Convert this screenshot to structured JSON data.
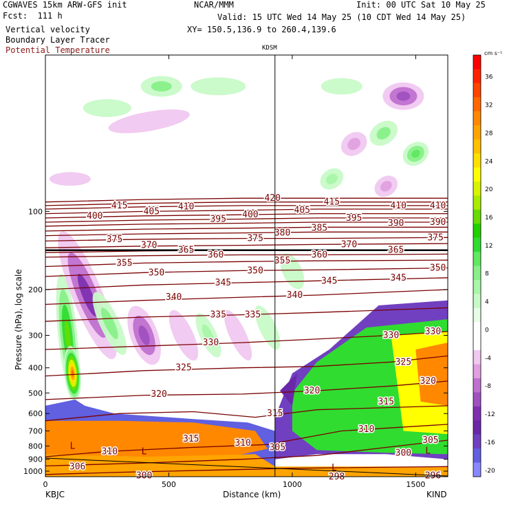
{
  "header": {
    "model": "CGWAVES 15km ARW-GFS init",
    "forecast": "Fcst:  111 h",
    "org": "NCAR/MMM",
    "init": "Init: 00 UTC Sat 10 May 25",
    "valid": "Valid: 15 UTC Wed 14 May 25 (10 CDT Wed 14 May 25)",
    "xy": "XY= 150.5,136.9 to 260.4,139.6",
    "fields": [
      "Vertical velocity",
      "Boundary Layer Tracer",
      "Potential Temperature"
    ]
  },
  "colors": {
    "theta": "#7a0000",
    "sounding": "#000000"
  },
  "chart_data": {
    "type": "heatmap",
    "ylabel": "Pressure (hPa), log scale",
    "xlabel": "Distance (km)",
    "xlim": [
      0,
      1630
    ],
    "ylim": [
      1050,
      25
    ],
    "yscale": "log",
    "x_ticks": [
      0,
      500,
      1000,
      1500
    ],
    "y_ticks": [
      100,
      200,
      300,
      400,
      500,
      600,
      700,
      800,
      900,
      1000
    ],
    "left_station": "KBJC",
    "right_station": "KIND",
    "vertical_marker": {
      "label": "KDSM",
      "x": 930
    },
    "colorbar": {
      "units": "cm s⁻¹",
      "ticks": [
        "36",
        "32",
        "28",
        "24",
        "20",
        "16",
        "12",
        "8",
        "4",
        "0",
        "-4",
        "-8",
        "-12",
        "-16",
        "-20"
      ],
      "levels": [
        {
          "v": 38,
          "color": "#ff0000"
        },
        {
          "v": 36,
          "color": "#ff2200"
        },
        {
          "v": 34,
          "color": "#ff4400"
        },
        {
          "v": 32,
          "color": "#ff6600"
        },
        {
          "v": 30,
          "color": "#ff8800"
        },
        {
          "v": 28,
          "color": "#ffa400"
        },
        {
          "v": 26,
          "color": "#ffc000"
        },
        {
          "v": 24,
          "color": "#ffe000"
        },
        {
          "v": 22,
          "color": "#ffff00"
        },
        {
          "v": 20,
          "color": "#d8f400"
        },
        {
          "v": 18,
          "color": "#a8ec00"
        },
        {
          "v": 16,
          "color": "#66dc00"
        },
        {
          "v": 14,
          "color": "#22d000"
        },
        {
          "v": 12,
          "color": "#30dc30"
        },
        {
          "v": 10,
          "color": "#60e860"
        },
        {
          "v": 8,
          "color": "#88f088"
        },
        {
          "v": 6,
          "color": "#a8f6a8"
        },
        {
          "v": 4,
          "color": "#c8fac8"
        },
        {
          "v": 2,
          "color": "#e6fde6"
        },
        {
          "v": 0,
          "color": "#ffffff"
        },
        {
          "v": -2,
          "color": "#ffffff"
        },
        {
          "v": -4,
          "color": "#f0c8f0"
        },
        {
          "v": -6,
          "color": "#e0a0e0"
        },
        {
          "v": -8,
          "color": "#c070d0"
        },
        {
          "v": -10,
          "color": "#a050c0"
        },
        {
          "v": -12,
          "color": "#8030b0"
        },
        {
          "v": -14,
          "color": "#6a28a8"
        },
        {
          "v": -16,
          "color": "#7040c0"
        },
        {
          "v": -18,
          "color": "#6060e0"
        },
        {
          "v": -20,
          "color": "#8888ff"
        }
      ]
    },
    "theta_contours": [
      {
        "label": "300",
        "x": [
          0,
          300,
          700,
          1000,
          1630
        ],
        "p": [
          1030,
          1010,
          990,
          975,
          960
        ]
      },
      {
        "label": "305",
        "x": [
          0,
          400,
          800,
          1100,
          1630
        ],
        "p": [
          955,
          930,
          900,
          870,
          760
        ]
      },
      {
        "label": "310",
        "x": [
          0,
          250,
          600,
          900,
          1200,
          1630
        ],
        "p": [
          880,
          840,
          810,
          790,
          700,
          660
        ]
      },
      {
        "label": "315",
        "x": [
          0,
          300,
          600,
          850,
          1100,
          1630
        ],
        "p": [
          640,
          600,
          590,
          620,
          580,
          560
        ]
      },
      {
        "label": "320",
        "x": [
          0,
          400,
          800,
          1100,
          1400,
          1630
        ],
        "p": [
          530,
          510,
          505,
          490,
          470,
          450
        ]
      },
      {
        "label": "325",
        "x": [
          0,
          400,
          800,
          1100,
          1400,
          1630
        ],
        "p": [
          430,
          410,
          400,
          395,
          380,
          360
        ]
      },
      {
        "label": "330",
        "x": [
          0,
          400,
          800,
          1100,
          1400,
          1630
        ],
        "p": [
          340,
          330,
          320,
          310,
          300,
          290
        ]
      },
      {
        "label": "335",
        "x": [
          0,
          400,
          800,
          1100,
          1630
        ],
        "p": [
          265,
          255,
          250,
          245,
          235
        ]
      },
      {
        "label": "340",
        "x": [
          0,
          400,
          800,
          1100,
          1630
        ],
        "p": [
          228,
          220,
          214,
          210,
          200
        ]
      },
      {
        "label": "345",
        "x": [
          0,
          400,
          800,
          1100,
          1630
        ],
        "p": [
          200,
          192,
          188,
          185,
          180
        ]
      },
      {
        "label": "350",
        "x": [
          0,
          400,
          800,
          1100,
          1630
        ],
        "p": [
          178,
          172,
          169,
          168,
          165
        ]
      },
      {
        "label": "355",
        "x": [
          0,
          400,
          800,
          1100,
          1630
        ],
        "p": [
          163,
          158,
          156,
          155,
          154
        ]
      },
      {
        "label": "360",
        "x": [
          0,
          400,
          800,
          1100,
          1630
        ],
        "p": [
          150,
          148,
          147,
          147,
          146
        ]
      },
      {
        "label": "365",
        "x": [
          0,
          400,
          800,
          1100,
          1630
        ],
        "p": [
          144,
          142,
          141,
          141,
          141
        ]
      },
      {
        "label": "370",
        "x": [
          0,
          400,
          800,
          1100,
          1630
        ],
        "p": [
          138,
          136,
          135,
          134,
          133
        ]
      },
      {
        "label": "375",
        "x": [
          0,
          400,
          800,
          1100,
          1630
        ],
        "p": [
          130,
          128,
          127,
          127,
          126
        ]
      },
      {
        "label": "380",
        "x": [
          0,
          400,
          800,
          1100,
          1630
        ],
        "p": [
          124,
          122,
          121,
          120,
          120
        ]
      },
      {
        "label": "385",
        "x": [
          0,
          400,
          800,
          1100,
          1630
        ],
        "p": [
          119,
          117,
          116,
          115,
          115
        ]
      },
      {
        "label": "390",
        "x": [
          0,
          400,
          800,
          1100,
          1630
        ],
        "p": [
          114,
          112,
          111,
          110,
          110
        ]
      },
      {
        "label": "395",
        "x": [
          0,
          400,
          800,
          1100,
          1630
        ],
        "p": [
          110,
          108,
          107,
          106,
          106
        ]
      },
      {
        "label": "400",
        "x": [
          0,
          400,
          800,
          1100,
          1630
        ],
        "p": [
          106,
          104,
          103,
          102,
          102
        ]
      },
      {
        "label": "405",
        "x": [
          0,
          400,
          800,
          1100,
          1630
        ],
        "p": [
          102,
          100,
          99,
          98,
          98
        ]
      },
      {
        "label": "410",
        "x": [
          0,
          400,
          800,
          1100,
          1630
        ],
        "p": [
          98,
          96,
          95,
          95,
          95
        ]
      },
      {
        "label": "415",
        "x": [
          0,
          400,
          800,
          1100,
          1630
        ],
        "p": [
          95,
          93,
          92,
          92,
          92
        ]
      },
      {
        "label": "420",
        "x": [
          0,
          400,
          800,
          1100,
          1630
        ],
        "p": [
          92,
          90,
          89,
          89,
          89
        ]
      }
    ],
    "contour_labels": [
      {
        "text": "415",
        "x": 300,
        "p": 95
      },
      {
        "text": "410",
        "x": 570,
        "p": 96
      },
      {
        "text": "420",
        "x": 920,
        "p": 89
      },
      {
        "text": "415",
        "x": 1160,
        "p": 92
      },
      {
        "text": "410",
        "x": 1430,
        "p": 95
      },
      {
        "text": "410",
        "x": 1590,
        "p": 95
      },
      {
        "text": "400",
        "x": 200,
        "p": 104
      },
      {
        "text": "405",
        "x": 430,
        "p": 100
      },
      {
        "text": "405",
        "x": 1040,
        "p": 99
      },
      {
        "text": "395",
        "x": 700,
        "p": 107
      },
      {
        "text": "400",
        "x": 830,
        "p": 103
      },
      {
        "text": "395",
        "x": 1250,
        "p": 106
      },
      {
        "text": "390",
        "x": 1420,
        "p": 111
      },
      {
        "text": "390",
        "x": 1590,
        "p": 110
      },
      {
        "text": "380",
        "x": 960,
        "p": 121
      },
      {
        "text": "385",
        "x": 1110,
        "p": 116
      },
      {
        "text": "375",
        "x": 280,
        "p": 128
      },
      {
        "text": "370",
        "x": 420,
        "p": 135
      },
      {
        "text": "365",
        "x": 570,
        "p": 141
      },
      {
        "text": "375",
        "x": 850,
        "p": 127
      },
      {
        "text": "370",
        "x": 1230,
        "p": 134
      },
      {
        "text": "375",
        "x": 1580,
        "p": 126
      },
      {
        "text": "360",
        "x": 690,
        "p": 147
      },
      {
        "text": "360",
        "x": 1110,
        "p": 147
      },
      {
        "text": "365",
        "x": 1420,
        "p": 141
      },
      {
        "text": "355",
        "x": 320,
        "p": 158
      },
      {
        "text": "350",
        "x": 450,
        "p": 172
      },
      {
        "text": "350",
        "x": 850,
        "p": 169
      },
      {
        "text": "355",
        "x": 960,
        "p": 155
      },
      {
        "text": "350",
        "x": 1590,
        "p": 165
      },
      {
        "text": "345",
        "x": 720,
        "p": 188
      },
      {
        "text": "345",
        "x": 1150,
        "p": 185
      },
      {
        "text": "345",
        "x": 1430,
        "p": 180
      },
      {
        "text": "340",
        "x": 520,
        "p": 214
      },
      {
        "text": "340",
        "x": 1010,
        "p": 210
      },
      {
        "text": "335",
        "x": 700,
        "p": 250
      },
      {
        "text": "335",
        "x": 840,
        "p": 250
      },
      {
        "text": "330",
        "x": 670,
        "p": 320
      },
      {
        "text": "330",
        "x": 1400,
        "p": 300
      },
      {
        "text": "330",
        "x": 1570,
        "p": 290
      },
      {
        "text": "325",
        "x": 560,
        "p": 400
      },
      {
        "text": "325",
        "x": 1450,
        "p": 380
      },
      {
        "text": "320",
        "x": 460,
        "p": 505
      },
      {
        "text": "320",
        "x": 1080,
        "p": 490
      },
      {
        "text": "320",
        "x": 1550,
        "p": 450
      },
      {
        "text": "315",
        "x": 1380,
        "p": 540
      },
      {
        "text": "315",
        "x": 930,
        "p": 600
      },
      {
        "text": "315",
        "x": 590,
        "p": 750
      },
      {
        "text": "310",
        "x": 1300,
        "p": 690
      },
      {
        "text": "310",
        "x": 800,
        "p": 780
      },
      {
        "text": "310",
        "x": 260,
        "p": 840
      },
      {
        "text": "305",
        "x": 1560,
        "p": 760
      },
      {
        "text": "305",
        "x": 940,
        "p": 810
      },
      {
        "text": "300",
        "x": 1450,
        "p": 850
      },
      {
        "text": "306",
        "x": 130,
        "p": 960
      },
      {
        "text": "300",
        "x": 400,
        "p": 1040
      },
      {
        "text": "298",
        "x": 1180,
        "p": 1050
      },
      {
        "text": "296",
        "x": 1570,
        "p": 1040
      }
    ],
    "low_markers": [
      {
        "text": "L",
        "x": 110,
        "p": 800
      },
      {
        "text": "L",
        "x": 400,
        "p": 840
      },
      {
        "text": "L",
        "x": 1170,
        "p": 970
      },
      {
        "text": "L",
        "x": 1550,
        "p": 835
      }
    ],
    "w_features": [
      {
        "x": 90,
        "p": 300,
        "rx": 14,
        "ry": 90,
        "v": 16,
        "rot": -6
      },
      {
        "x": 170,
        "p": 210,
        "rx": 22,
        "ry": 100,
        "v": -12,
        "rot": -22
      },
      {
        "x": 110,
        "p": 420,
        "rx": 12,
        "ry": 40,
        "v": 32,
        "rot": -5
      },
      {
        "x": 400,
        "p": 300,
        "rx": 20,
        "ry": 45,
        "v": -10,
        "rot": -20
      },
      {
        "x": 260,
        "p": 270,
        "rx": 14,
        "ry": 50,
        "v": 8,
        "rot": -25
      },
      {
        "x": 560,
        "p": 300,
        "rx": 14,
        "ry": 40,
        "v": -4,
        "rot": -25
      },
      {
        "x": 660,
        "p": 300,
        "rx": 12,
        "ry": 35,
        "v": 6,
        "rot": -25
      },
      {
        "x": 780,
        "p": 300,
        "rx": 12,
        "ry": 40,
        "v": -4,
        "rot": -25
      },
      {
        "x": 900,
        "p": 280,
        "rx": 12,
        "ry": 35,
        "v": 4,
        "rot": -25
      },
      {
        "x": 1450,
        "p": 36,
        "rx": 30,
        "ry": 20,
        "v": -10,
        "rot": 0
      },
      {
        "x": 1370,
        "p": 50,
        "rx": 22,
        "ry": 16,
        "v": 8,
        "rot": -35
      },
      {
        "x": 1250,
        "p": 55,
        "rx": 20,
        "ry": 16,
        "v": -6,
        "rot": -35
      },
      {
        "x": 1160,
        "p": 75,
        "rx": 18,
        "ry": 14,
        "v": 6,
        "rot": -35
      },
      {
        "x": 1500,
        "p": 60,
        "rx": 20,
        "ry": 16,
        "v": 10,
        "rot": -35
      },
      {
        "x": 1380,
        "p": 80,
        "rx": 18,
        "ry": 14,
        "v": -6,
        "rot": -35
      },
      {
        "x": 470,
        "p": 33,
        "rx": 30,
        "ry": 15,
        "v": 8,
        "rot": 0
      },
      {
        "x": 420,
        "p": 45,
        "rx": 60,
        "ry": 14,
        "v": -4,
        "rot": -10
      },
      {
        "x": 700,
        "p": 33,
        "rx": 40,
        "ry": 13,
        "v": 4,
        "rot": 0
      },
      {
        "x": 250,
        "p": 40,
        "rx": 35,
        "ry": 13,
        "v": 4,
        "rot": 0
      },
      {
        "x": 1200,
        "p": 33,
        "rx": 30,
        "ry": 12,
        "v": 4,
        "rot": 0
      },
      {
        "x": 100,
        "p": 75,
        "rx": 30,
        "ry": 10,
        "v": -4,
        "rot": 0
      },
      {
        "x": 1000,
        "p": 170,
        "rx": 14,
        "ry": 28,
        "v": 4,
        "rot": -25
      }
    ],
    "bl_tracer": [
      {
        "x": 0,
        "p": 520,
        "rx": 0,
        "ry": 0
      },
      {
        "x": 850,
        "p": 700,
        "rx": 0,
        "ry": 0
      }
    ],
    "bl_regions": [
      {
        "v": -18,
        "x": [
          0,
          120,
          160,
          280,
          600,
          820,
          930,
          930,
          0
        ],
        "p": [
          560,
          530,
          560,
          600,
          630,
          650,
          700,
          1050,
          1050
        ]
      },
      {
        "v": 30,
        "x": [
          0,
          300,
          600,
          850,
          900,
          700,
          0
        ],
        "p": [
          640,
          640,
          650,
          700,
          820,
          900,
          860
        ]
      },
      {
        "v": 28,
        "x": [
          0,
          400,
          850,
          930,
          1630,
          1630,
          0
        ],
        "p": [
          860,
          880,
          860,
          960,
          960,
          1050,
          1050
        ]
      },
      {
        "v": -16,
        "x": [
          930,
          1000,
          1150,
          1350,
          1630,
          1630,
          1380,
          1100,
          930
        ],
        "p": [
          620,
          420,
          340,
          230,
          220,
          900,
          860,
          860,
          900
        ]
      },
      {
        "v": 12,
        "x": [
          1000,
          1100,
          1300,
          1630,
          1630,
          1380,
          1100,
          1000
        ],
        "p": [
          500,
          380,
          280,
          260,
          860,
          850,
          830,
          700
        ]
      },
      {
        "v": 22,
        "x": [
          1400,
          1630,
          1630,
          1450
        ],
        "p": [
          300,
          290,
          720,
          700
        ]
      },
      {
        "v": 30,
        "x": [
          1500,
          1630,
          1630,
          1520
        ],
        "p": [
          340,
          320,
          560,
          540
        ]
      },
      {
        "v": -14,
        "x": [
          950,
          1020,
          1000
        ],
        "p": [
          490,
          420,
          560
        ]
      }
    ]
  }
}
